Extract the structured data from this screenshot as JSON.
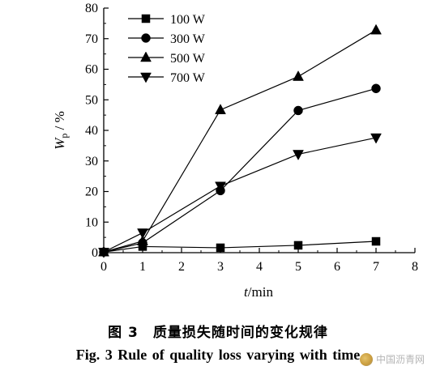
{
  "chart_data": {
    "type": "line",
    "x_axis": {
      "label_var": "t",
      "label_unit": "/min",
      "min": 0,
      "max": 8,
      "ticks": [
        0,
        1,
        2,
        3,
        4,
        5,
        6,
        7,
        8
      ]
    },
    "y_axis": {
      "label_var": "W",
      "label_sub": "p",
      "label_unit": " / %",
      "min": 0,
      "max": 80,
      "ticks": [
        0,
        10,
        20,
        30,
        40,
        50,
        60,
        70,
        80
      ]
    },
    "legend_position": "top-left",
    "grid": false,
    "series": [
      {
        "name": "100 W",
        "marker": "square",
        "x": [
          0,
          1,
          3,
          5,
          7
        ],
        "y": [
          0.2,
          2.0,
          1.6,
          2.4,
          3.7
        ]
      },
      {
        "name": "300 W",
        "marker": "circle",
        "x": [
          0,
          1,
          3,
          5,
          7
        ],
        "y": [
          0.2,
          3.2,
          20.3,
          46.5,
          53.7
        ]
      },
      {
        "name": "500 W",
        "marker": "triangle-up",
        "x": [
          0,
          1,
          3,
          5,
          7
        ],
        "y": [
          0.2,
          3.8,
          46.7,
          57.6,
          72.8
        ]
      },
      {
        "name": "700 W",
        "marker": "triangle-down",
        "x": [
          0,
          1,
          3,
          5,
          7
        ],
        "y": [
          0.2,
          6.5,
          21.8,
          32.2,
          37.6
        ]
      }
    ]
  },
  "caption": {
    "cn": "图 3　质量损失随时间的变化规律",
    "en": "Fig. 3    Rule of quality loss varying with time"
  },
  "watermark": {
    "text": "中国沥青网"
  }
}
